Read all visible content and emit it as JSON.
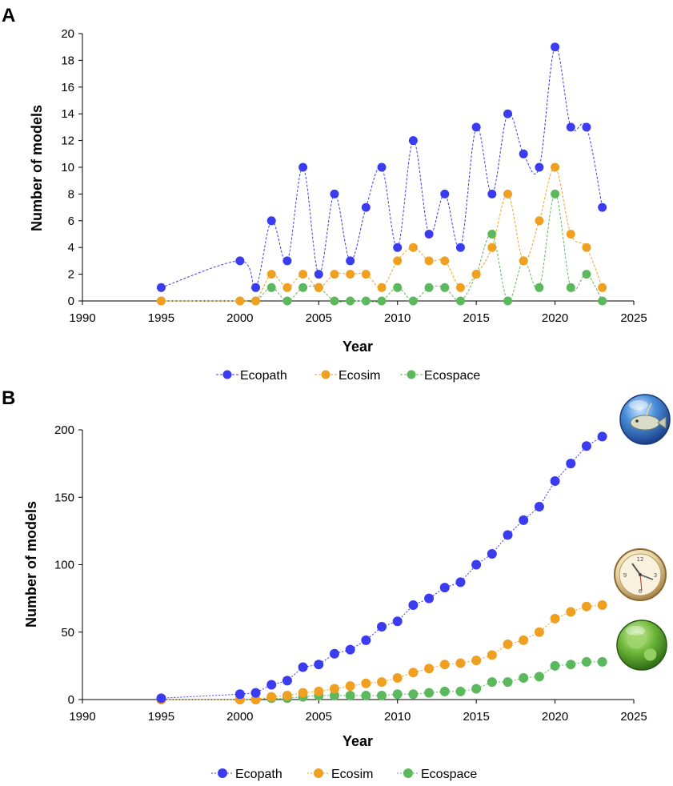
{
  "colors": {
    "ecopath": "#3b3bf0",
    "ecosim": "#f0a020",
    "ecospace": "#5cb85c"
  },
  "chart_data": [
    {
      "panel": "A",
      "type": "line",
      "xlabel": "Year",
      "ylabel": "Number of models",
      "xlim": [
        1990,
        2025
      ],
      "ylim": [
        0,
        20
      ],
      "xticks": [
        1990,
        1995,
        2000,
        2005,
        2010,
        2015,
        2020,
        2025
      ],
      "yticks": [
        0,
        2,
        4,
        6,
        8,
        10,
        12,
        14,
        16,
        18,
        20
      ],
      "x": [
        1995,
        2000,
        2001,
        2002,
        2003,
        2004,
        2005,
        2006,
        2007,
        2008,
        2009,
        2010,
        2011,
        2012,
        2013,
        2014,
        2015,
        2016,
        2017,
        2018,
        2019,
        2020,
        2021,
        2022,
        2023
      ],
      "series": [
        {
          "name": "Ecopath",
          "key": "ecopath",
          "values": [
            1,
            3,
            1,
            6,
            3,
            10,
            2,
            8,
            3,
            7,
            10,
            4,
            12,
            5,
            8,
            4,
            13,
            8,
            14,
            11,
            10,
            19,
            13,
            13,
            7
          ]
        },
        {
          "name": "Ecosim",
          "key": "ecosim",
          "values": [
            0,
            0,
            0,
            2,
            1,
            2,
            1,
            2,
            2,
            2,
            1,
            3,
            4,
            3,
            3,
            1,
            2,
            4,
            8,
            3,
            6,
            10,
            5,
            4,
            1
          ]
        },
        {
          "name": "Ecospace",
          "key": "ecospace",
          "values": [
            0,
            0,
            0,
            1,
            0,
            1,
            1,
            0,
            0,
            0,
            0,
            1,
            0,
            1,
            1,
            0,
            2,
            5,
            0,
            3,
            1,
            8,
            1,
            2,
            0
          ]
        }
      ]
    },
    {
      "panel": "B",
      "type": "line",
      "xlabel": "Year",
      "ylabel": "Number of models",
      "xlim": [
        1990,
        2025
      ],
      "ylim": [
        0,
        200
      ],
      "xticks": [
        1990,
        1995,
        2000,
        2005,
        2010,
        2015,
        2020,
        2025
      ],
      "yticks": [
        0,
        50,
        100,
        150,
        200
      ],
      "x": [
        1995,
        2000,
        2001,
        2002,
        2003,
        2004,
        2005,
        2006,
        2007,
        2008,
        2009,
        2010,
        2011,
        2012,
        2013,
        2014,
        2015,
        2016,
        2017,
        2018,
        2019,
        2020,
        2021,
        2022,
        2023
      ],
      "series": [
        {
          "name": "Ecopath",
          "key": "ecopath",
          "values": [
            1,
            4,
            5,
            11,
            14,
            24,
            26,
            34,
            37,
            44,
            54,
            58,
            70,
            75,
            83,
            87,
            100,
            108,
            122,
            133,
            143,
            162,
            175,
            188,
            195
          ]
        },
        {
          "name": "Ecosim",
          "key": "ecosim",
          "values": [
            0,
            0,
            0,
            2,
            3,
            5,
            6,
            8,
            10,
            12,
            13,
            16,
            20,
            23,
            26,
            27,
            29,
            33,
            41,
            44,
            50,
            60,
            65,
            69,
            70
          ]
        },
        {
          "name": "Ecospace",
          "key": "ecospace",
          "values": [
            0,
            0,
            0,
            1,
            1,
            2,
            3,
            3,
            3,
            3,
            3,
            4,
            4,
            5,
            6,
            6,
            8,
            13,
            13,
            16,
            17,
            25,
            26,
            28,
            28
          ]
        }
      ]
    }
  ]
}
